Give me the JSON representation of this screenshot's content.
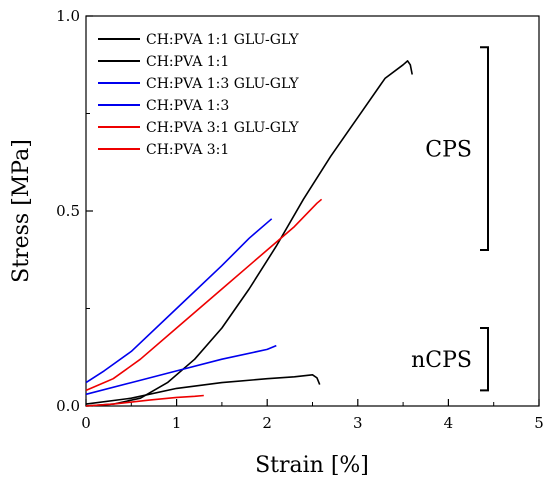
{
  "chart_data": {
    "type": "line",
    "xlabel": "Strain [%]",
    "ylabel": "Stress [MPa]",
    "xlim": [
      0,
      5
    ],
    "ylim": [
      0,
      1.0
    ],
    "x_ticks": [
      "0",
      "1",
      "2",
      "3",
      "4",
      "5"
    ],
    "y_ticks": [
      "0.0",
      "0.5",
      "1.0"
    ],
    "grid": false,
    "legend_position": "top-left",
    "series": [
      {
        "name": "CH:PVA 1:1 GLU-GLY",
        "color": "#000000",
        "points": [
          [
            0,
            0
          ],
          [
            0.3,
            0.005
          ],
          [
            0.6,
            0.02
          ],
          [
            0.9,
            0.06
          ],
          [
            1.2,
            0.12
          ],
          [
            1.5,
            0.2
          ],
          [
            1.8,
            0.3
          ],
          [
            2.1,
            0.41
          ],
          [
            2.4,
            0.53
          ],
          [
            2.7,
            0.64
          ],
          [
            3.0,
            0.74
          ],
          [
            3.3,
            0.84
          ],
          [
            3.5,
            0.875
          ],
          [
            3.55,
            0.885
          ],
          [
            3.58,
            0.875
          ],
          [
            3.6,
            0.85
          ]
        ]
      },
      {
        "name": "CH:PVA 1:1",
        "color": "#000000",
        "points": [
          [
            0,
            0.005
          ],
          [
            0.5,
            0.02
          ],
          [
            1.0,
            0.045
          ],
          [
            1.5,
            0.06
          ],
          [
            2.0,
            0.07
          ],
          [
            2.3,
            0.075
          ],
          [
            2.5,
            0.08
          ],
          [
            2.55,
            0.072
          ],
          [
            2.58,
            0.055
          ]
        ]
      },
      {
        "name": "CH:PVA 1:3 GLU-GLY",
        "color": "#0000ee",
        "points": [
          [
            0,
            0.06
          ],
          [
            0.2,
            0.09
          ],
          [
            0.5,
            0.14
          ],
          [
            1.0,
            0.25
          ],
          [
            1.5,
            0.36
          ],
          [
            1.8,
            0.43
          ],
          [
            2.0,
            0.47
          ],
          [
            2.05,
            0.48
          ]
        ]
      },
      {
        "name": "CH:PVA 1:3",
        "color": "#0000ee",
        "points": [
          [
            0,
            0.03
          ],
          [
            0.5,
            0.06
          ],
          [
            1.0,
            0.09
          ],
          [
            1.5,
            0.12
          ],
          [
            2.0,
            0.145
          ],
          [
            2.1,
            0.155
          ]
        ]
      },
      {
        "name": "CH:PVA 3:1 GLU-GLY",
        "color": "#ee0000",
        "points": [
          [
            0,
            0.04
          ],
          [
            0.3,
            0.07
          ],
          [
            0.6,
            0.12
          ],
          [
            1.0,
            0.2
          ],
          [
            1.5,
            0.3
          ],
          [
            2.0,
            0.4
          ],
          [
            2.3,
            0.46
          ],
          [
            2.55,
            0.52
          ],
          [
            2.6,
            0.53
          ]
        ]
      },
      {
        "name": "CH:PVA 3:1",
        "color": "#ee0000",
        "points": [
          [
            0,
            0.0
          ],
          [
            0.3,
            0.005
          ],
          [
            0.7,
            0.015
          ],
          [
            1.0,
            0.022
          ],
          [
            1.2,
            0.025
          ],
          [
            1.3,
            0.027
          ]
        ]
      }
    ],
    "groups": [
      {
        "label": "CPS",
        "y_range": [
          0.4,
          0.92
        ]
      },
      {
        "label": "nCPS",
        "y_range": [
          0.04,
          0.2
        ]
      }
    ]
  }
}
